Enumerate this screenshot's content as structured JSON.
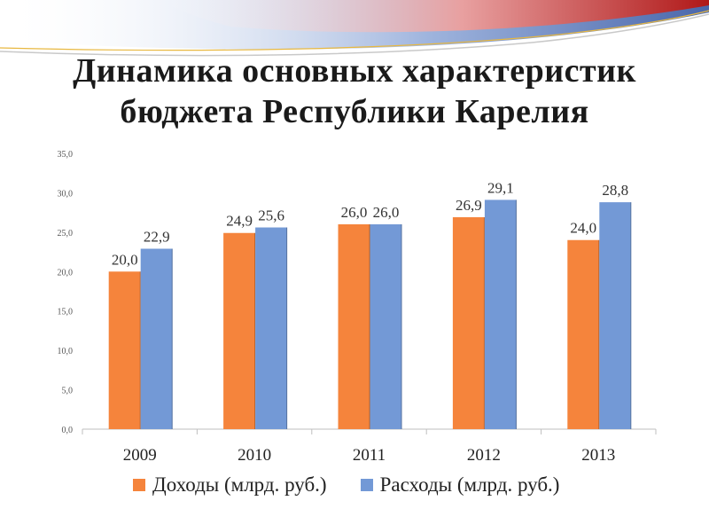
{
  "slide": {
    "title_line1": "Динамика основных характеристик",
    "title_line2": "бюджета Республики Карелия"
  },
  "chart_data": {
    "type": "bar",
    "categories": [
      "2009",
      "2010",
      "2011",
      "2012",
      "2013"
    ],
    "series": [
      {
        "name": "Доходы (млрд. руб.)",
        "values": [
          20.0,
          24.9,
          26.0,
          26.9,
          24.0
        ],
        "color": "#f5843c"
      },
      {
        "name": "Расходы (млрд. руб.)",
        "values": [
          22.9,
          25.6,
          26.0,
          29.1,
          28.8
        ],
        "color": "#7399d6"
      }
    ],
    "data_labels_1": [
      "20,0",
      "24,9",
      "26,0",
      "26,9",
      "24,0"
    ],
    "data_labels_2": [
      "22,9",
      "25,6",
      "26,0",
      "29,1",
      "28,8"
    ],
    "yticks": [
      0,
      5,
      10,
      15,
      20,
      25,
      30,
      35
    ],
    "ytick_labels": [
      "0,0",
      "5,0",
      "10,0",
      "15,0",
      "20,0",
      "25,0",
      "30,0",
      "35,0"
    ],
    "ylim": [
      0,
      35
    ],
    "legend_position": "bottom",
    "grid": false
  }
}
